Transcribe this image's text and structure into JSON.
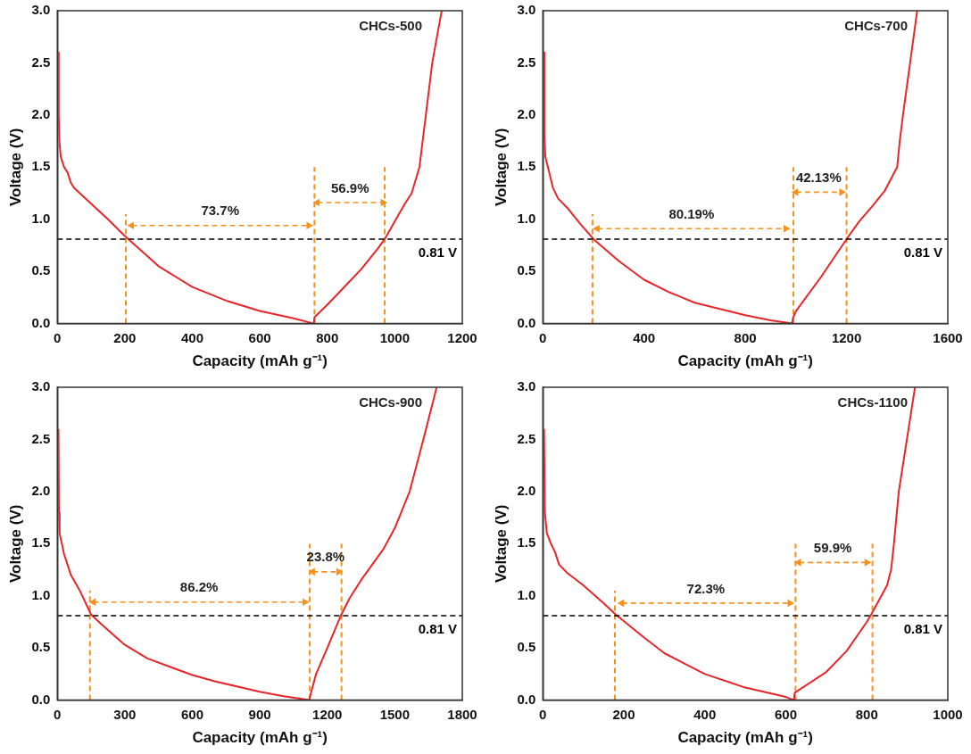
{
  "chart_data": [
    {
      "type": "line",
      "xlabel": "Capacity (mAh g⁻¹)",
      "ylabel": "Voltage (V)",
      "xlim": [
        0,
        1200
      ],
      "xticks": [
        0,
        200,
        400,
        600,
        800,
        1000,
        1200
      ],
      "ylim": [
        0,
        3
      ],
      "yticks": [
        {
          "value": 0,
          "label": "0.0"
        },
        {
          "value": 0.5,
          "label": "0.5"
        },
        {
          "value": 1,
          "label": "1.0"
        },
        {
          "value": 1.5,
          "label": "1.5"
        },
        {
          "value": 2,
          "label": "2.0"
        },
        {
          "value": 2.5,
          "label": "2.5"
        },
        {
          "value": 3,
          "label": "3.0"
        }
      ],
      "grid": false,
      "legend": false,
      "marker": "none",
      "line_style": "solid",
      "series": [
        {
          "color": "#e8262a",
          "x": [
            3,
            4,
            6,
            10,
            20,
            30,
            40,
            50,
            100,
            150,
            200,
            300,
            350,
            400,
            500,
            600,
            700,
            760,
            762,
            800,
            850,
            900,
            950,
            970,
            1000,
            1030,
            1050,
            1073,
            1092,
            1111,
            1139
          ],
          "values": [
            2.6,
            2.0,
            1.75,
            1.6,
            1.5,
            1.45,
            1.35,
            1.3,
            1.15,
            1.0,
            0.84,
            0.55,
            0.45,
            0.35,
            0.22,
            0.12,
            0.05,
            0.0,
            0.06,
            0.18,
            0.35,
            0.52,
            0.72,
            0.81,
            0.98,
            1.15,
            1.25,
            1.5,
            2.0,
            2.5,
            3.0
          ]
        },
        {
          "color": "#f5921e",
          "line_style": "dashed",
          "x": [
            203,
            203
          ],
          "values": [
            0,
            1.05
          ]
        },
        {
          "color": "#f5921e",
          "line_style": "dashed",
          "x": [
            762,
            762
          ],
          "values": [
            0,
            1.5
          ]
        },
        {
          "color": "#f5921e",
          "line_style": "dashed",
          "x": [
            970,
            970
          ],
          "values": [
            0,
            1.5
          ]
        },
        {
          "color": "#f5921e",
          "line_style": "dashed",
          "marker": "triangle",
          "x": [
            220,
            745
          ],
          "values": [
            0.94,
            0.94
          ]
        },
        {
          "color": "#f5921e",
          "line_style": "dashed",
          "marker": "triangle",
          "x": [
            770,
            965
          ],
          "values": [
            1.16,
            1.16
          ]
        }
      ],
      "ref_lines": [
        {
          "axis": "y",
          "value": 0.81,
          "label": "0.81 V",
          "color": "#000000",
          "line_style": "dashed"
        }
      ],
      "annotations": [
        "CHCs-500",
        "73.7%",
        "56.9%"
      ]
    },
    {
      "type": "line",
      "xlabel": "Capacity (mAh g⁻¹)",
      "ylabel": "Voltage (V)",
      "xlim": [
        0,
        1600
      ],
      "xticks": [
        0,
        400,
        800,
        1200,
        1600
      ],
      "ylim": [
        0,
        3
      ],
      "yticks": [
        {
          "value": 0,
          "label": "0.0"
        },
        {
          "value": 0.5,
          "label": "0.5"
        },
        {
          "value": 1,
          "label": "1.0"
        },
        {
          "value": 1.5,
          "label": "1.5"
        },
        {
          "value": 2,
          "label": "2.0"
        },
        {
          "value": 2.5,
          "label": "2.5"
        },
        {
          "value": 3,
          "label": "3.0"
        }
      ],
      "grid": false,
      "legend": false,
      "marker": "none",
      "line_style": "solid",
      "series": [
        {
          "color": "#e8262a",
          "x": [
            4,
            6,
            10,
            20,
            40,
            60,
            100,
            150,
            200,
            300,
            400,
            500,
            600,
            800,
            900,
            985,
            988,
            1000,
            1100,
            1200,
            1250,
            1300,
            1350,
            1400,
            1410,
            1423,
            1451,
            1479
          ],
          "values": [
            2.6,
            1.8,
            1.6,
            1.5,
            1.3,
            1.2,
            1.1,
            0.95,
            0.81,
            0.6,
            0.42,
            0.3,
            0.2,
            0.08,
            0.03,
            0.0,
            0.05,
            0.12,
            0.45,
            0.81,
            0.98,
            1.12,
            1.27,
            1.5,
            1.75,
            2.0,
            2.5,
            3.0
          ]
        },
        {
          "color": "#f5921e",
          "line_style": "dashed",
          "x": [
            196,
            196
          ],
          "values": [
            0,
            1.05
          ]
        },
        {
          "color": "#f5921e",
          "line_style": "dashed",
          "x": [
            990,
            990
          ],
          "values": [
            0,
            1.5
          ]
        },
        {
          "color": "#f5921e",
          "line_style": "dashed",
          "x": [
            1200,
            1200
          ],
          "values": [
            0,
            1.5
          ]
        },
        {
          "color": "#f5921e",
          "line_style": "dashed",
          "marker": "triangle",
          "x": [
            215,
            960
          ],
          "values": [
            0.91,
            0.91
          ]
        },
        {
          "color": "#f5921e",
          "line_style": "dashed",
          "marker": "triangle",
          "x": [
            1000,
            1180
          ],
          "values": [
            1.26,
            1.26
          ]
        }
      ],
      "ref_lines": [
        {
          "axis": "y",
          "value": 0.81,
          "label": "0.81 V",
          "color": "#000000",
          "line_style": "dashed"
        }
      ],
      "annotations": [
        "CHCs-700",
        "80.19%",
        "42.13%"
      ]
    },
    {
      "type": "line",
      "xlabel": "Capacity (mAh g⁻¹)",
      "ylabel": "Voltage (V)",
      "xlim": [
        0,
        1800
      ],
      "xticks": [
        0,
        300,
        600,
        900,
        1200,
        1500,
        1800
      ],
      "ylim": [
        0,
        3
      ],
      "yticks": [
        {
          "value": 0,
          "label": "0.0"
        },
        {
          "value": 0.5,
          "label": "0.5"
        },
        {
          "value": 1,
          "label": "1.0"
        },
        {
          "value": 1.5,
          "label": "1.5"
        },
        {
          "value": 2,
          "label": "2.0"
        },
        {
          "value": 2.5,
          "label": "2.5"
        },
        {
          "value": 3,
          "label": "3.0"
        }
      ],
      "grid": false,
      "legend": false,
      "marker": "none",
      "line_style": "solid",
      "series": [
        {
          "color": "#e8262a",
          "x": [
            5,
            7,
            10,
            30,
            60,
            100,
            150,
            200,
            300,
            400,
            500,
            600,
            700,
            900,
            1000,
            1120,
            1125,
            1150,
            1200,
            1260,
            1300,
            1350,
            1400,
            1450,
            1500,
            1566,
            1627,
            1686
          ],
          "values": [
            2.6,
            1.8,
            1.6,
            1.4,
            1.2,
            1.05,
            0.82,
            0.72,
            0.53,
            0.4,
            0.32,
            0.24,
            0.18,
            0.08,
            0.04,
            0.0,
            0.05,
            0.25,
            0.5,
            0.81,
            0.98,
            1.15,
            1.3,
            1.45,
            1.65,
            2.0,
            2.5,
            3.0
          ]
        },
        {
          "color": "#f5921e",
          "line_style": "dashed",
          "x": [
            145,
            145
          ],
          "values": [
            0,
            1.05
          ]
        },
        {
          "color": "#f5921e",
          "line_style": "dashed",
          "x": [
            1122,
            1122
          ],
          "values": [
            0,
            1.5
          ]
        },
        {
          "color": "#f5921e",
          "line_style": "dashed",
          "x": [
            1263,
            1263
          ],
          "values": [
            0,
            1.5
          ]
        },
        {
          "color": "#f5921e",
          "line_style": "dashed",
          "marker": "triangle",
          "x": [
            160,
            1100
          ],
          "values": [
            0.94,
            0.94
          ]
        },
        {
          "color": "#f5921e",
          "line_style": "dashed",
          "marker": "triangle",
          "x": [
            1135,
            1250
          ],
          "values": [
            1.23,
            1.23
          ]
        }
      ],
      "ref_lines": [
        {
          "axis": "y",
          "value": 0.81,
          "label": "0.81 V",
          "color": "#000000",
          "line_style": "dashed"
        }
      ],
      "annotations": [
        "CHCs-900",
        "86.2%",
        "23.8%"
      ]
    },
    {
      "type": "line",
      "xlabel": "Capacity (mAh g⁻¹)",
      "ylabel": "Voltage (V)",
      "xlim": [
        0,
        1000
      ],
      "xticks": [
        0,
        200,
        400,
        600,
        800,
        1000
      ],
      "ylim": [
        0,
        3
      ],
      "yticks": [
        {
          "value": 0,
          "label": "0.0"
        },
        {
          "value": 0.5,
          "label": "0.5"
        },
        {
          "value": 1,
          "label": "1.0"
        },
        {
          "value": 1.5,
          "label": "1.5"
        },
        {
          "value": 2,
          "label": "2.0"
        },
        {
          "value": 2.5,
          "label": "2.5"
        },
        {
          "value": 3,
          "label": "3.0"
        }
      ],
      "grid": false,
      "legend": false,
      "marker": "none",
      "line_style": "solid",
      "series": [
        {
          "color": "#e8262a",
          "x": [
            3,
            5,
            10,
            20,
            30,
            40,
            60,
            100,
            150,
            180,
            250,
            300,
            400,
            500,
            600,
            620,
            622,
            700,
            750,
            800,
            815,
            850,
            860,
            867,
            879,
            899,
            919
          ],
          "values": [
            2.6,
            1.8,
            1.6,
            1.5,
            1.42,
            1.3,
            1.22,
            1.1,
            0.93,
            0.82,
            0.6,
            0.45,
            0.25,
            0.12,
            0.03,
            0.0,
            0.07,
            0.27,
            0.47,
            0.75,
            0.85,
            1.1,
            1.25,
            1.5,
            2.0,
            2.5,
            3.0
          ]
        },
        {
          "color": "#f5921e",
          "line_style": "dashed",
          "x": [
            178,
            178
          ],
          "values": [
            0,
            1.05
          ]
        },
        {
          "color": "#f5921e",
          "line_style": "dashed",
          "x": [
            624,
            624
          ],
          "values": [
            0,
            1.5
          ]
        },
        {
          "color": "#f5921e",
          "line_style": "dashed",
          "x": [
            814,
            814
          ],
          "values": [
            0,
            1.5
          ]
        },
        {
          "color": "#f5921e",
          "line_style": "dashed",
          "marker": "triangle",
          "x": [
            195,
            610
          ],
          "values": [
            0.93,
            0.93
          ]
        },
        {
          "color": "#f5921e",
          "line_style": "dashed",
          "marker": "triangle",
          "x": [
            632,
            800
          ],
          "values": [
            1.32,
            1.32
          ]
        }
      ],
      "ref_lines": [
        {
          "axis": "y",
          "value": 0.81,
          "label": "0.81 V",
          "color": "#000000",
          "line_style": "dashed"
        }
      ],
      "annotations": [
        "CHCs-1100",
        "72.3%",
        "59.9%"
      ]
    }
  ]
}
